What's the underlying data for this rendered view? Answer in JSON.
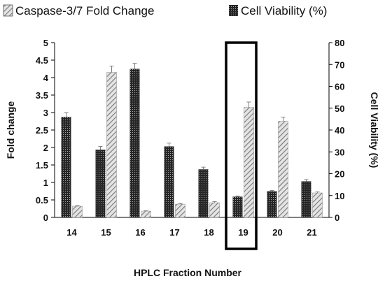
{
  "chart_data": {
    "type": "bar",
    "categories": [
      "14",
      "15",
      "16",
      "17",
      "18",
      "19",
      "20",
      "21"
    ],
    "series": [
      {
        "name": "Caspase-3/7 Fold Change",
        "axis": "left",
        "pattern": "diagonal-hatch",
        "values": [
          0.32,
          4.15,
          0.18,
          0.38,
          0.42,
          3.15,
          2.75,
          0.7
        ],
        "errors": [
          0.02,
          0.18,
          0.01,
          0.02,
          0.03,
          0.15,
          0.12,
          0.03
        ]
      },
      {
        "name": "Cell Viability (%)",
        "axis": "right",
        "pattern": "dark-dots",
        "values": [
          46,
          31,
          68,
          32.5,
          22,
          9.5,
          12,
          16.5
        ],
        "errors": [
          2,
          1.5,
          2.5,
          1.5,
          1,
          0.3,
          0.3,
          0.8
        ]
      }
    ],
    "xlabel": "HPLC Fraction Number",
    "ylabel_left": "Fold change",
    "ylabel_right": "Cell Viability (%)",
    "ylim_left": [
      0,
      5
    ],
    "yticks_left": [
      "0",
      "0.5",
      "1",
      "1.5",
      "2",
      "2.5",
      "3",
      "3.5",
      "4",
      "4.5",
      "5"
    ],
    "ylim_right": [
      0,
      80
    ],
    "yticks_right": [
      "0",
      "10",
      "20",
      "30",
      "40",
      "50",
      "60",
      "70",
      "80"
    ],
    "highlighted_category": "19",
    "legend_position": "top",
    "grid": false,
    "colors": {
      "hatch": "#9a9a9a",
      "dots": "#2a2a2a",
      "axis": "#000000",
      "error": "#808080"
    }
  }
}
